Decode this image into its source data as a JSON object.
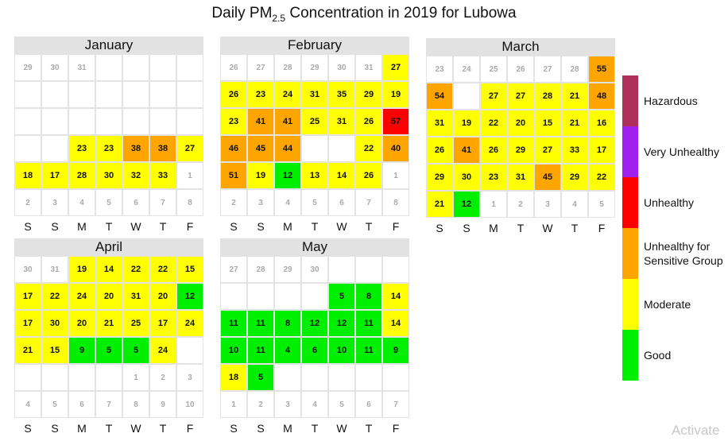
{
  "chart_data": {
    "type": "heatmap",
    "title_main": "Daily PM",
    "title_sub": "2.5",
    "title_rest": " Concentration in 2019 for Lubowa",
    "weekdays": [
      "S",
      "S",
      "M",
      "T",
      "W",
      "T",
      "F"
    ],
    "categories": [
      {
        "name": "Hazardous",
        "color": "#b0305c"
      },
      {
        "name": "Very Unhealthy",
        "color": "#a020f0"
      },
      {
        "name": "Unhealthy",
        "color": "#ff0000"
      },
      {
        "name": "Unhealthy for Sensitive Group",
        "color": "#ffa500"
      },
      {
        "name": "Moderate",
        "color": "#ffff00"
      },
      {
        "name": "Good",
        "color": "#00ee00"
      }
    ],
    "months": [
      {
        "name": "January",
        "rows": [
          [
            {
              "l": "29",
              "o": true
            },
            {
              "l": "30",
              "o": true
            },
            {
              "l": "31",
              "o": true
            },
            {
              "l": ""
            },
            {
              "l": ""
            },
            {
              "l": ""
            },
            {
              "l": ""
            }
          ],
          [
            {
              "l": ""
            },
            {
              "l": ""
            },
            {
              "l": ""
            },
            {
              "l": ""
            },
            {
              "l": ""
            },
            {
              "l": ""
            },
            {
              "l": ""
            }
          ],
          [
            {
              "l": ""
            },
            {
              "l": ""
            },
            {
              "l": ""
            },
            {
              "l": ""
            },
            {
              "l": ""
            },
            {
              "l": ""
            },
            {
              "l": ""
            }
          ],
          [
            {
              "l": ""
            },
            {
              "l": ""
            },
            {
              "l": "23",
              "v": 23
            },
            {
              "l": "23",
              "v": 23
            },
            {
              "l": "38",
              "v": 38
            },
            {
              "l": "38",
              "v": 38
            },
            {
              "l": "27",
              "v": 27
            }
          ],
          [
            {
              "l": "18",
              "v": 18
            },
            {
              "l": "17",
              "v": 17
            },
            {
              "l": "28",
              "v": 28
            },
            {
              "l": "30",
              "v": 30
            },
            {
              "l": "32",
              "v": 32
            },
            {
              "l": "33",
              "v": 33
            },
            {
              "l": "1",
              "o": true
            }
          ],
          [
            {
              "l": "2",
              "o": true
            },
            {
              "l": "3",
              "o": true
            },
            {
              "l": "4",
              "o": true
            },
            {
              "l": "5",
              "o": true
            },
            {
              "l": "6",
              "o": true
            },
            {
              "l": "7",
              "o": true
            },
            {
              "l": "8",
              "o": true
            }
          ]
        ]
      },
      {
        "name": "February",
        "rows": [
          [
            {
              "l": "26",
              "o": true
            },
            {
              "l": "27",
              "o": true
            },
            {
              "l": "28",
              "o": true
            },
            {
              "l": "29",
              "o": true
            },
            {
              "l": "30",
              "o": true
            },
            {
              "l": "31",
              "o": true
            },
            {
              "l": "27",
              "v": 27
            }
          ],
          [
            {
              "l": "26",
              "v": 26
            },
            {
              "l": "23",
              "v": 23
            },
            {
              "l": "24",
              "v": 24
            },
            {
              "l": "31",
              "v": 31
            },
            {
              "l": "35",
              "v": 35
            },
            {
              "l": "29",
              "v": 29
            },
            {
              "l": "19",
              "v": 19
            }
          ],
          [
            {
              "l": "23",
              "v": 23
            },
            {
              "l": "41",
              "v": 41
            },
            {
              "l": "41",
              "v": 41
            },
            {
              "l": "25",
              "v": 25
            },
            {
              "l": "31",
              "v": 31
            },
            {
              "l": "26",
              "v": 26
            },
            {
              "l": "57",
              "v": 57
            }
          ],
          [
            {
              "l": "46",
              "v": 46
            },
            {
              "l": "45",
              "v": 45
            },
            {
              "l": "44",
              "v": 44
            },
            {
              "l": ""
            },
            {
              "l": ""
            },
            {
              "l": "22",
              "v": 22
            },
            {
              "l": "40",
              "v": 40
            }
          ],
          [
            {
              "l": "51",
              "v": 51
            },
            {
              "l": "19",
              "v": 19
            },
            {
              "l": "12",
              "v": 12
            },
            {
              "l": "13",
              "v": 13
            },
            {
              "l": "14",
              "v": 14
            },
            {
              "l": "26",
              "v": 26
            },
            {
              "l": "1",
              "o": true
            }
          ],
          [
            {
              "l": "2",
              "o": true
            },
            {
              "l": "3",
              "o": true
            },
            {
              "l": "4",
              "o": true
            },
            {
              "l": "5",
              "o": true
            },
            {
              "l": "6",
              "o": true
            },
            {
              "l": "7",
              "o": true
            },
            {
              "l": "8",
              "o": true
            }
          ]
        ]
      },
      {
        "name": "March",
        "rows": [
          [
            {
              "l": "23",
              "o": true
            },
            {
              "l": "24",
              "o": true
            },
            {
              "l": "25",
              "o": true
            },
            {
              "l": "26",
              "o": true
            },
            {
              "l": "27",
              "o": true
            },
            {
              "l": "28",
              "o": true
            },
            {
              "l": "55",
              "v": 55
            }
          ],
          [
            {
              "l": "54",
              "v": 54
            },
            {
              "l": ""
            },
            {
              "l": "27",
              "v": 27
            },
            {
              "l": "27",
              "v": 27
            },
            {
              "l": "28",
              "v": 28
            },
            {
              "l": "21",
              "v": 21
            },
            {
              "l": "48",
              "v": 48
            }
          ],
          [
            {
              "l": "31",
              "v": 31
            },
            {
              "l": "19",
              "v": 19
            },
            {
              "l": "22",
              "v": 22
            },
            {
              "l": "20",
              "v": 20
            },
            {
              "l": "15",
              "v": 15
            },
            {
              "l": "21",
              "v": 21
            },
            {
              "l": "16",
              "v": 16
            }
          ],
          [
            {
              "l": "26",
              "v": 26
            },
            {
              "l": "41",
              "v": 41
            },
            {
              "l": "26",
              "v": 26
            },
            {
              "l": "29",
              "v": 29
            },
            {
              "l": "27",
              "v": 27
            },
            {
              "l": "33",
              "v": 33
            },
            {
              "l": "17",
              "v": 17
            }
          ],
          [
            {
              "l": "29",
              "v": 29
            },
            {
              "l": "30",
              "v": 30
            },
            {
              "l": "23",
              "v": 23
            },
            {
              "l": "31",
              "v": 31
            },
            {
              "l": "45",
              "v": 45
            },
            {
              "l": "29",
              "v": 29
            },
            {
              "l": "22",
              "v": 22
            }
          ],
          [
            {
              "l": "21",
              "v": 21
            },
            {
              "l": "12",
              "v": 12
            },
            {
              "l": "1",
              "o": true
            },
            {
              "l": "2",
              "o": true
            },
            {
              "l": "3",
              "o": true
            },
            {
              "l": "4",
              "o": true
            },
            {
              "l": "5",
              "o": true
            }
          ]
        ]
      },
      {
        "name": "April",
        "rows": [
          [
            {
              "l": "30",
              "o": true
            },
            {
              "l": "31",
              "o": true
            },
            {
              "l": "19",
              "v": 19
            },
            {
              "l": "14",
              "v": 14
            },
            {
              "l": "22",
              "v": 22
            },
            {
              "l": "22",
              "v": 22
            },
            {
              "l": "15",
              "v": 15
            }
          ],
          [
            {
              "l": "17",
              "v": 17
            },
            {
              "l": "22",
              "v": 22
            },
            {
              "l": "24",
              "v": 24
            },
            {
              "l": "20",
              "v": 20
            },
            {
              "l": "31",
              "v": 31
            },
            {
              "l": "20",
              "v": 20
            },
            {
              "l": "12",
              "v": 12
            }
          ],
          [
            {
              "l": "17",
              "v": 17
            },
            {
              "l": "30",
              "v": 30
            },
            {
              "l": "20",
              "v": 20
            },
            {
              "l": "21",
              "v": 21
            },
            {
              "l": "25",
              "v": 25
            },
            {
              "l": "17",
              "v": 17
            },
            {
              "l": "24",
              "v": 24
            }
          ],
          [
            {
              "l": "21",
              "v": 21
            },
            {
              "l": "15",
              "v": 15
            },
            {
              "l": "9",
              "v": 9
            },
            {
              "l": "5",
              "v": 5
            },
            {
              "l": "5",
              "v": 5
            },
            {
              "l": "24",
              "v": 24
            },
            {
              "l": ""
            }
          ],
          [
            {
              "l": ""
            },
            {
              "l": ""
            },
            {
              "l": ""
            },
            {
              "l": ""
            },
            {
              "l": "1",
              "o": true
            },
            {
              "l": "2",
              "o": true
            },
            {
              "l": "3",
              "o": true
            }
          ],
          [
            {
              "l": "4",
              "o": true
            },
            {
              "l": "5",
              "o": true
            },
            {
              "l": "6",
              "o": true
            },
            {
              "l": "7",
              "o": true
            },
            {
              "l": "8",
              "o": true
            },
            {
              "l": "9",
              "o": true
            },
            {
              "l": "10",
              "o": true
            }
          ]
        ]
      },
      {
        "name": "May",
        "rows": [
          [
            {
              "l": "27",
              "o": true
            },
            {
              "l": "28",
              "o": true
            },
            {
              "l": "29",
              "o": true
            },
            {
              "l": "30",
              "o": true
            },
            {
              "l": ""
            },
            {
              "l": ""
            },
            {
              "l": ""
            }
          ],
          [
            {
              "l": ""
            },
            {
              "l": ""
            },
            {
              "l": ""
            },
            {
              "l": ""
            },
            {
              "l": "5",
              "v": 5
            },
            {
              "l": "8",
              "v": 8
            },
            {
              "l": "14",
              "v": 14
            }
          ],
          [
            {
              "l": "11",
              "v": 11
            },
            {
              "l": "11",
              "v": 11
            },
            {
              "l": "8",
              "v": 8
            },
            {
              "l": "12",
              "v": 12
            },
            {
              "l": "12",
              "v": 12
            },
            {
              "l": "11",
              "v": 11
            },
            {
              "l": "14",
              "v": 14
            }
          ],
          [
            {
              "l": "10",
              "v": 10
            },
            {
              "l": "11",
              "v": 11
            },
            {
              "l": "4",
              "v": 4
            },
            {
              "l": "6",
              "v": 6
            },
            {
              "l": "10",
              "v": 10
            },
            {
              "l": "11",
              "v": 11
            },
            {
              "l": "9",
              "v": 9
            }
          ],
          [
            {
              "l": "18",
              "v": 18
            },
            {
              "l": "5",
              "v": 5
            },
            {
              "l": ""
            },
            {
              "l": ""
            },
            {
              "l": ""
            },
            {
              "l": ""
            },
            {
              "l": ""
            }
          ],
          [
            {
              "l": "1",
              "o": true
            },
            {
              "l": "2",
              "o": true
            },
            {
              "l": "3",
              "o": true
            },
            {
              "l": "4",
              "o": true
            },
            {
              "l": "5",
              "o": true
            },
            {
              "l": "6",
              "o": true
            },
            {
              "l": "7",
              "o": true
            }
          ]
        ]
      }
    ]
  },
  "legend": {
    "items": [
      {
        "label": "Hazardous",
        "color": "#b0305c"
      },
      {
        "label": "Very Unhealthy",
        "color": "#a020f0"
      },
      {
        "label": "Unhealthy",
        "color": "#ff0000"
      },
      {
        "label": "Unhealthy for\nSensitive Group",
        "color": "#ffa500"
      },
      {
        "label": "Moderate",
        "color": "#ffff00"
      },
      {
        "label": "Good",
        "color": "#00ee00"
      }
    ]
  },
  "watermark": "Activate"
}
